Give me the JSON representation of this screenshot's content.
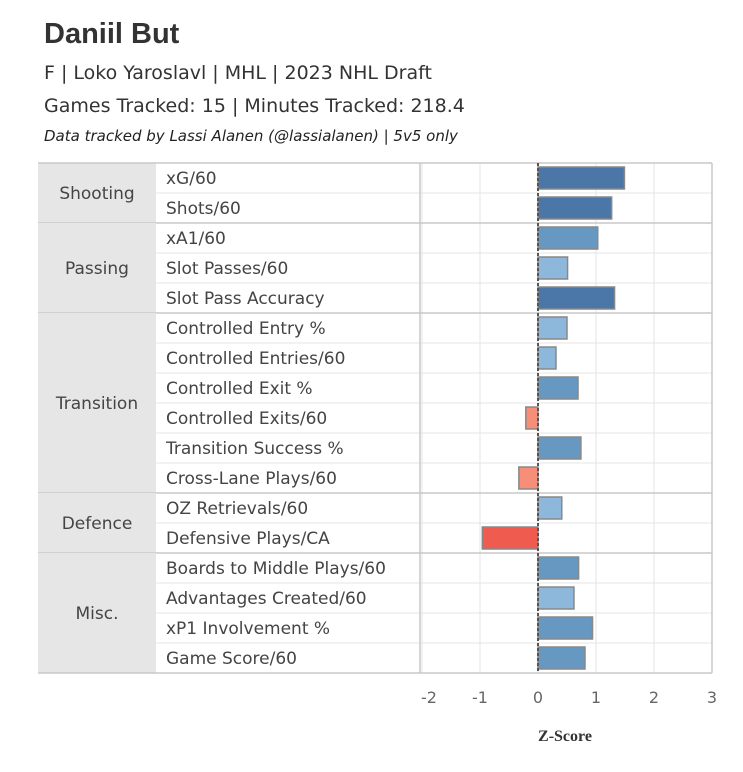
{
  "header": {
    "title": "Daniil But",
    "subtitle": "F | Loko Yaroslavl | MHL | 2023 NHL Draft",
    "tracked": "Games Tracked: 15 | Minutes Tracked: 218.4",
    "credit": "Data tracked by Lassi Alanen (@lassialanen) | 5v5 only"
  },
  "chart_data": {
    "type": "bar",
    "orientation": "horizontal",
    "xlabel": "Z-Score",
    "xlim": [
      -2,
      3
    ],
    "xticks": [
      -2,
      -1,
      0,
      1,
      2,
      3
    ],
    "grid": true,
    "groups": [
      {
        "name": "Shooting",
        "metrics": [
          {
            "label": "xG/60",
            "value": 1.49,
            "color": "#4a77a8"
          },
          {
            "label": "Shots/60",
            "value": 1.27,
            "color": "#4a77a8"
          }
        ]
      },
      {
        "name": "Passing",
        "metrics": [
          {
            "label": "xA1/60",
            "value": 1.03,
            "color": "#6798c1"
          },
          {
            "label": "Slot Passes/60",
            "value": 0.51,
            "color": "#8db8dc"
          },
          {
            "label": "Slot Pass Accuracy",
            "value": 1.32,
            "color": "#4a77a8"
          }
        ]
      },
      {
        "name": "Transition",
        "metrics": [
          {
            "label": "Controlled Entry %",
            "value": 0.5,
            "color": "#8db8dc"
          },
          {
            "label": "Controlled Entries/60",
            "value": 0.31,
            "color": "#8db8dc"
          },
          {
            "label": "Controlled Exit %",
            "value": 0.69,
            "color": "#6798c1"
          },
          {
            "label": "Controlled Exits/60",
            "value": -0.21,
            "color": "#f68e78"
          },
          {
            "label": "Transition Success %",
            "value": 0.74,
            "color": "#6798c1"
          },
          {
            "label": "Cross-Lane Plays/60",
            "value": -0.33,
            "color": "#f68e78"
          }
        ]
      },
      {
        "name": "Defence",
        "metrics": [
          {
            "label": "OZ Retrievals/60",
            "value": 0.41,
            "color": "#8db8dc"
          },
          {
            "label": "Defensive Plays/CA",
            "value": -0.96,
            "color": "#ef5b4f"
          }
        ]
      },
      {
        "name": "Misc.",
        "metrics": [
          {
            "label": "Boards to Middle Plays/60",
            "value": 0.7,
            "color": "#6798c1"
          },
          {
            "label": "Advantages Created/60",
            "value": 0.62,
            "color": "#8db8dc"
          },
          {
            "label": "xP1 Involvement %",
            "value": 0.94,
            "color": "#6798c1"
          },
          {
            "label": "Game Score/60",
            "value": 0.81,
            "color": "#6798c1"
          }
        ]
      }
    ]
  }
}
